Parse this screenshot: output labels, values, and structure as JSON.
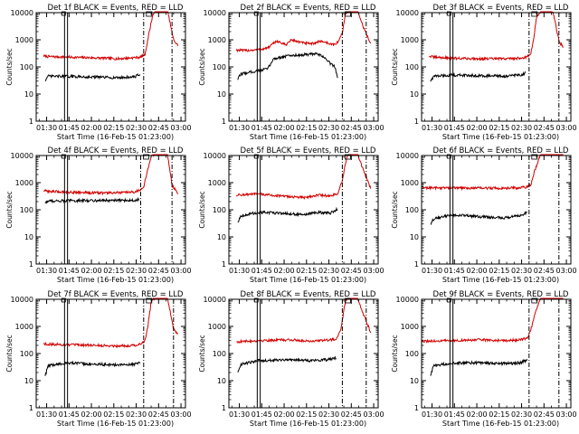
{
  "figure": {
    "colors": {
      "events": "#000000",
      "lld": "#d40000",
      "axes": "#000000",
      "background": "#ffffff"
    },
    "xtick_labels": [
      "01:30",
      "01:45",
      "02:00",
      "02:15",
      "02:30",
      "02:45",
      "03:00"
    ],
    "ytick_labels": [
      "1",
      "10",
      "100",
      "1000",
      "10000"
    ]
  },
  "chart_data": [
    {
      "type": "line",
      "title": "Det 1f BLACK = Events, RED = LLD",
      "xlabel": "Start Time (16-Feb-15 01:23:00)",
      "ylabel": "Counts/sec",
      "x_range_minutes": [
        0,
        100
      ],
      "y_scale": "log",
      "ylim": [
        1,
        10000
      ],
      "markers": {
        "solid": [
          19,
          21
        ],
        "dashdot": [
          72,
          91
        ]
      },
      "series": [
        {
          "color": "red",
          "x": [
            5,
            8,
            20,
            40,
            55,
            66,
            70,
            73,
            75,
            78,
            80,
            84,
            88,
            92,
            95
          ],
          "y": [
            250,
            240,
            230,
            215,
            200,
            220,
            230,
            290,
            1200,
            8000,
            12000,
            14000,
            12000,
            1000,
            600
          ]
        },
        {
          "color": "black",
          "x": [
            6,
            8,
            20,
            40,
            55,
            66,
            70
          ],
          "y": [
            32,
            45,
            45,
            42,
            40,
            43,
            55
          ]
        }
      ]
    },
    {
      "type": "line",
      "title": "Det 2f BLACK = Events, RED = LLD",
      "xlabel": "Start Time (16-Feb-15 01:23:00)",
      "ylabel": "Counts/sec",
      "x_range_minutes": [
        0,
        100
      ],
      "y_scale": "log",
      "ylim": [
        1,
        10000
      ],
      "markers": {
        "solid": [
          19,
          21
        ],
        "dashdot": [
          76,
          92
        ]
      },
      "series": [
        {
          "color": "red",
          "x": [
            5,
            10,
            20,
            26,
            32,
            38,
            42,
            48,
            55,
            62,
            70,
            73,
            76,
            78,
            82,
            86,
            90,
            95
          ],
          "y": [
            420,
            400,
            430,
            500,
            900,
            650,
            1000,
            800,
            700,
            900,
            650,
            800,
            1800,
            9000,
            14000,
            12000,
            3000,
            700
          ]
        },
        {
          "color": "black",
          "x": [
            6,
            8,
            18,
            26,
            30,
            40,
            50,
            58,
            63,
            67,
            71,
            73
          ],
          "y": [
            35,
            55,
            70,
            85,
            200,
            260,
            280,
            300,
            250,
            150,
            100,
            40
          ]
        }
      ]
    },
    {
      "type": "line",
      "title": "Det 3f BLACK = Events, RED = LLD",
      "xlabel": "Start Time (16-Feb-15 01:23:00)",
      "ylabel": "Counts/sec",
      "x_range_minutes": [
        0,
        100
      ],
      "y_scale": "log",
      "ylim": [
        1,
        10000
      ],
      "markers": {
        "solid": [
          19,
          21
        ],
        "dashdot": [
          72,
          92
        ]
      },
      "series": [
        {
          "color": "red",
          "x": [
            5,
            8,
            20,
            40,
            55,
            66,
            70,
            73,
            75,
            77,
            80,
            84,
            88,
            92,
            95
          ],
          "y": [
            250,
            230,
            210,
            200,
            200,
            210,
            230,
            280,
            1000,
            7000,
            12000,
            14000,
            11000,
            900,
            500
          ]
        },
        {
          "color": "black",
          "x": [
            6,
            8,
            20,
            40,
            55,
            66,
            70
          ],
          "y": [
            30,
            45,
            50,
            48,
            45,
            50,
            60
          ]
        }
      ]
    },
    {
      "type": "line",
      "title": "Det 4f BLACK = Events, RED = LLD",
      "xlabel": "Start Time (16-Feb-15 01:23:00)",
      "ylabel": "Counts/sec",
      "x_range_minutes": [
        0,
        100
      ],
      "y_scale": "log",
      "ylim": [
        1,
        10000
      ],
      "markers": {
        "solid": [
          19,
          21
        ],
        "dashdot": [
          70,
          91
        ]
      },
      "series": [
        {
          "color": "red",
          "x": [
            5,
            8,
            20,
            40,
            55,
            66,
            69,
            72,
            74,
            77,
            80,
            84,
            88,
            91,
            95
          ],
          "y": [
            500,
            480,
            450,
            420,
            420,
            450,
            520,
            700,
            2000,
            9000,
            12000,
            14000,
            11000,
            800,
            400
          ]
        },
        {
          "color": "black",
          "x": [
            6,
            8,
            20,
            40,
            55,
            66,
            69
          ],
          "y": [
            180,
            210,
            215,
            220,
            220,
            225,
            240
          ]
        }
      ]
    },
    {
      "type": "line",
      "title": "Det 5f BLACK = Events, RED = LLD",
      "xlabel": "Start Time (16-Feb-15 01:23:00)",
      "ylabel": "Counts/sec",
      "x_range_minutes": [
        0,
        100
      ],
      "y_scale": "log",
      "ylim": [
        1,
        10000
      ],
      "markers": {
        "solid": [
          19,
          21
        ],
        "dashdot": [
          76,
          92
        ]
      },
      "series": [
        {
          "color": "red",
          "x": [
            5,
            10,
            20,
            35,
            50,
            60,
            68,
            73,
            76,
            79,
            82,
            86,
            90,
            95
          ],
          "y": [
            350,
            360,
            380,
            320,
            280,
            350,
            320,
            400,
            1200,
            9000,
            14000,
            12000,
            3000,
            600
          ]
        },
        {
          "color": "black",
          "x": [
            6,
            8,
            20,
            35,
            50,
            60,
            68,
            73
          ],
          "y": [
            35,
            60,
            80,
            75,
            65,
            80,
            75,
            110
          ]
        }
      ]
    },
    {
      "type": "line",
      "title": "Det 6f BLACK = Events, RED = LLD",
      "xlabel": "Start Time (16-Feb-15 01:23:00)",
      "ylabel": "Counts/sec",
      "x_range_minutes": [
        0,
        100
      ],
      "y_scale": "log",
      "ylim": [
        1,
        10000
      ],
      "markers": {
        "solid": [
          19,
          21
        ],
        "dashdot": [
          72,
          92
        ]
      },
      "series": [
        {
          "color": "red",
          "x": [
            0,
            20,
            40,
            55,
            66,
            71,
            73,
            76,
            80,
            86,
            92,
            95
          ],
          "y": [
            650,
            640,
            630,
            620,
            650,
            700,
            800,
            3000,
            12000,
            15000,
            14000,
            12000
          ]
        },
        {
          "color": "black",
          "x": [
            6,
            8,
            20,
            40,
            55,
            66,
            71
          ],
          "y": [
            30,
            45,
            65,
            55,
            50,
            60,
            80
          ]
        }
      ]
    },
    {
      "type": "line",
      "title": "Det 7f BLACK = Events, RED = LLD",
      "xlabel": "Start Time (16-Feb-15 01:23:00)",
      "ylabel": "Counts/sec",
      "x_range_minutes": [
        0,
        100
      ],
      "y_scale": "log",
      "ylim": [
        1,
        10000
      ],
      "markers": {
        "solid": [
          19,
          21
        ],
        "dashdot": [
          72,
          92
        ]
      },
      "series": [
        {
          "color": "red",
          "x": [
            5,
            8,
            20,
            40,
            55,
            66,
            70,
            73,
            75,
            77,
            80,
            84,
            88,
            92,
            95
          ],
          "y": [
            230,
            220,
            210,
            200,
            190,
            200,
            230,
            300,
            1200,
            8000,
            12000,
            14000,
            11000,
            800,
            500
          ]
        },
        {
          "color": "black",
          "x": [
            6,
            8,
            20,
            40,
            55,
            66,
            70
          ],
          "y": [
            15,
            35,
            45,
            40,
            38,
            40,
            50
          ]
        }
      ]
    },
    {
      "type": "line",
      "title": "Det 8f BLACK = Events, RED = LLD",
      "xlabel": "Start Time (16-Feb-15 01:23:00)",
      "ylabel": "Counts/sec",
      "x_range_minutes": [
        0,
        100
      ],
      "y_scale": "log",
      "ylim": [
        1,
        10000
      ],
      "markers": {
        "solid": [
          19,
          21
        ],
        "dashdot": [
          76,
          92
        ]
      },
      "series": [
        {
          "color": "red",
          "x": [
            5,
            10,
            20,
            40,
            55,
            66,
            72,
            75,
            78,
            82,
            86,
            90,
            95
          ],
          "y": [
            270,
            280,
            300,
            320,
            290,
            310,
            350,
            800,
            8000,
            14000,
            12000,
            3000,
            600
          ]
        },
        {
          "color": "black",
          "x": [
            6,
            8,
            20,
            40,
            55,
            66,
            72
          ],
          "y": [
            20,
            40,
            55,
            60,
            55,
            60,
            70
          ]
        }
      ]
    },
    {
      "type": "line",
      "title": "Det 9f BLACK = Events, RED = LLD",
      "xlabel": "Start Time (16-Feb-15 01:23:00)",
      "ylabel": "Counts/sec",
      "x_range_minutes": [
        0,
        100
      ],
      "y_scale": "log",
      "ylim": [
        1,
        10000
      ],
      "markers": {
        "solid": [
          19,
          21
        ],
        "dashdot": [
          72,
          92
        ]
      },
      "series": [
        {
          "color": "red",
          "x": [
            0,
            20,
            40,
            55,
            66,
            71,
            73,
            76,
            80,
            86,
            92,
            95
          ],
          "y": [
            280,
            300,
            320,
            300,
            320,
            380,
            700,
            3000,
            12000,
            15000,
            14000,
            12000
          ]
        },
        {
          "color": "black",
          "x": [
            6,
            8,
            20,
            40,
            55,
            66,
            71
          ],
          "y": [
            15,
            35,
            45,
            45,
            42,
            45,
            60
          ]
        }
      ]
    }
  ]
}
